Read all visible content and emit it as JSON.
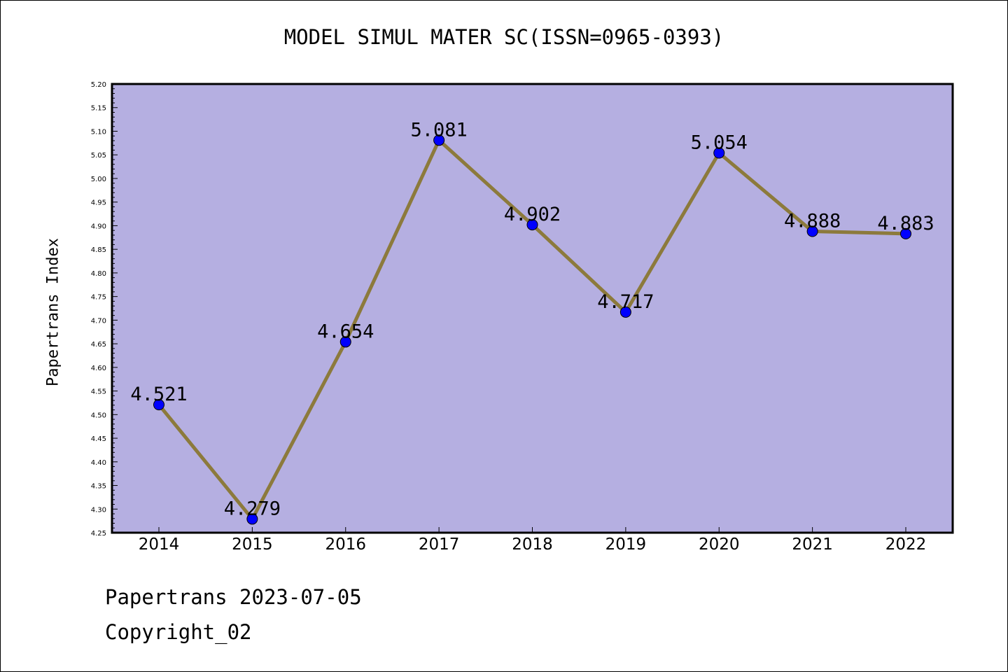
{
  "chart_data": {
    "type": "line",
    "title": "MODEL SIMUL MATER SC(ISSN=0965-0393)",
    "xlabel": "",
    "ylabel": "Papertrans Index",
    "categories": [
      "2014",
      "2015",
      "2016",
      "2017",
      "2018",
      "2019",
      "2020",
      "2021",
      "2022"
    ],
    "values": [
      4.521,
      4.279,
      4.654,
      5.081,
      4.902,
      4.717,
      5.054,
      4.888,
      4.883
    ],
    "data_labels": [
      "4.521",
      "4.279",
      "4.654",
      "5.081",
      "4.902",
      "4.717",
      "5.054",
      "4.888",
      "4.883"
    ],
    "ylim": [
      4.25,
      5.2
    ],
    "yticks": [
      "4.25",
      "4.30",
      "4.35",
      "4.40",
      "4.45",
      "4.50",
      "4.55",
      "4.60",
      "4.65",
      "4.70",
      "4.75",
      "4.80",
      "4.85",
      "4.90",
      "4.95",
      "5.00",
      "5.05",
      "5.10",
      "5.15",
      "5.20"
    ],
    "grid": false,
    "legend": "none",
    "colors": {
      "plot_background": "#b5afe1",
      "line": "#8c7a3c",
      "marker": "#0000ff"
    }
  },
  "footer": {
    "line1": "Papertrans 2023-07-05",
    "line2": "Copyright_02"
  }
}
